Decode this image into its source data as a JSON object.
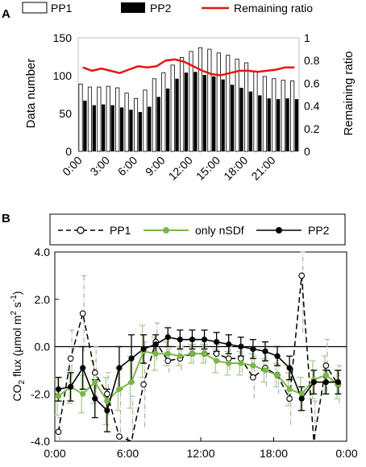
{
  "panel_a": {
    "label": "A",
    "legend": {
      "pp1": "PP1",
      "pp2": "PP2",
      "ratio": "Remaining ratio"
    },
    "ylabel_left": "Data number",
    "ylabel_right": "Remaining ratio",
    "colors": {
      "pp1_fill": "#ffffff",
      "pp2_fill": "#000000",
      "ratio_line": "#e8140f"
    }
  },
  "panel_b": {
    "label": "B",
    "legend": {
      "pp1": "PP1",
      "nsdf": "only nSDf",
      "pp2": "PP2"
    },
    "ylabel": "CO2 flux (μmol m-2 s-1)",
    "ylabel_parts": {
      "a": "CO",
      "sub": "2",
      "b": " flux (μmol m",
      "sup1": "2",
      "c": " s",
      "sup2": "-1",
      "d": ")"
    },
    "colors": {
      "pp1": "#000000",
      "nsdf": "#7ab648",
      "pp2": "#000000"
    }
  },
  "chart_data": [
    {
      "type": "bar",
      "panel": "A",
      "categories": [
        "0:00",
        "1:00",
        "2:00",
        "3:00",
        "4:00",
        "5:00",
        "6:00",
        "7:00",
        "8:00",
        "9:00",
        "10:00",
        "11:00",
        "12:00",
        "13:00",
        "14:00",
        "15:00",
        "16:00",
        "17:00",
        "18:00",
        "19:00",
        "20:00",
        "21:00",
        "22:00",
        "23:00"
      ],
      "xtick_labels": [
        "0:00",
        "3:00",
        "6:00",
        "9:00",
        "12:00",
        "15:00",
        "18:00",
        "21:00"
      ],
      "series": [
        {
          "name": "PP1",
          "type": "bar",
          "axis": "left",
          "values": [
            89,
            85,
            85,
            86,
            84,
            77,
            70,
            81,
            96,
            104,
            114,
            124,
            132,
            137,
            135,
            130,
            127,
            122,
            117,
            106,
            99,
            96,
            94,
            93
          ]
        },
        {
          "name": "PP2",
          "type": "bar",
          "axis": "left",
          "values": [
            67,
            61,
            62,
            61,
            58,
            55,
            52,
            59,
            72,
            83,
            96,
            104,
            105,
            101,
            99,
            95,
            88,
            84,
            79,
            74,
            70,
            69,
            70,
            69
          ]
        },
        {
          "name": "Remaining ratio",
          "type": "line",
          "axis": "right",
          "values": [
            0.74,
            0.71,
            0.73,
            0.71,
            0.69,
            0.72,
            0.75,
            0.74,
            0.75,
            0.8,
            0.81,
            0.79,
            0.75,
            0.71,
            0.68,
            0.67,
            0.69,
            0.71,
            0.71,
            0.7,
            0.71,
            0.72,
            0.74,
            0.74
          ]
        }
      ],
      "yticks_left": [
        0,
        50,
        100,
        150
      ],
      "yticks_right": [
        0,
        0.2,
        0.4,
        0.6,
        0.8,
        1
      ],
      "ylim_left": [
        0,
        150
      ],
      "ylim_right": [
        0,
        1
      ],
      "legend_position": "top"
    },
    {
      "type": "line",
      "panel": "B",
      "x_hours": [
        0,
        1,
        2,
        3,
        4,
        5,
        6,
        7,
        8,
        9,
        10,
        11,
        12,
        13,
        14,
        15,
        16,
        17,
        18,
        19,
        20,
        21,
        22,
        23
      ],
      "xtick_labels": [
        "0:00",
        "6:00",
        "12:00",
        "18:00",
        "0:00"
      ],
      "yticks": [
        "-4.0",
        "-2.0",
        "0.0",
        "2.0",
        "4.0"
      ],
      "ylim": [
        -4.0,
        4.0
      ],
      "series": [
        {
          "name": "PP1",
          "style": "dashed",
          "values": [
            -3.6,
            -0.5,
            1.4,
            -1.1,
            -2.0,
            -3.8,
            -4.3,
            -1.6,
            0.2,
            -0.6,
            -0.5,
            -0.3,
            -0.3,
            -0.3,
            -0.5,
            -0.5,
            -1.3,
            -0.9,
            -1.2,
            -2.2,
            3.0,
            -4.5,
            -0.8,
            -1.6
          ]
        },
        {
          "name": "only nSDf",
          "style": "solid",
          "values": [
            -2.1,
            -1.7,
            -2.0,
            -1.5,
            -2.3,
            -1.8,
            -1.5,
            -0.2,
            -0.3,
            -0.3,
            -0.4,
            -0.3,
            -0.3,
            -0.6,
            -0.7,
            -0.7,
            -0.8,
            -1.0,
            -1.2,
            -1.8,
            -2.0,
            -1.4,
            -1.2,
            -1.6
          ]
        },
        {
          "name": "PP2",
          "style": "solid",
          "values": [
            -1.8,
            -1.7,
            -0.9,
            -2.2,
            -2.7,
            -0.9,
            -0.5,
            -0.1,
            0.1,
            0.4,
            0.3,
            0.3,
            0.3,
            0.2,
            0.1,
            0.0,
            -0.1,
            -0.2,
            -0.4,
            -0.9,
            -2.2,
            -1.5,
            -1.5,
            -1.5
          ]
        }
      ],
      "error_bars": {
        "PP1": [
          0.6,
          1.2,
          1.6,
          1.1,
          0.9,
          2.0,
          2.2,
          1.8,
          0.8,
          0.5,
          0.5,
          0.4,
          0.4,
          0.4,
          0.5,
          0.6,
          0.9,
          0.8,
          0.8,
          1.1,
          2.4,
          2.2,
          1.1,
          0.8
        ],
        "only nSDf": [
          0.8,
          0.7,
          0.8,
          0.9,
          1.0,
          0.9,
          1.1,
          1.1,
          0.7,
          0.5,
          0.4,
          0.4,
          0.4,
          0.5,
          0.5,
          0.5,
          0.5,
          0.5,
          0.5,
          0.7,
          0.7,
          0.8,
          0.8,
          0.6
        ],
        "PP2": [
          0.5,
          0.6,
          0.9,
          0.8,
          0.9,
          0.9,
          1.0,
          0.6,
          0.4,
          0.4,
          0.4,
          0.4,
          0.4,
          0.4,
          0.4,
          0.4,
          0.4,
          0.4,
          0.4,
          0.5,
          0.5,
          0.5,
          0.5,
          0.5
        ]
      },
      "reference_line": 0.0,
      "legend_position": "top"
    }
  ]
}
